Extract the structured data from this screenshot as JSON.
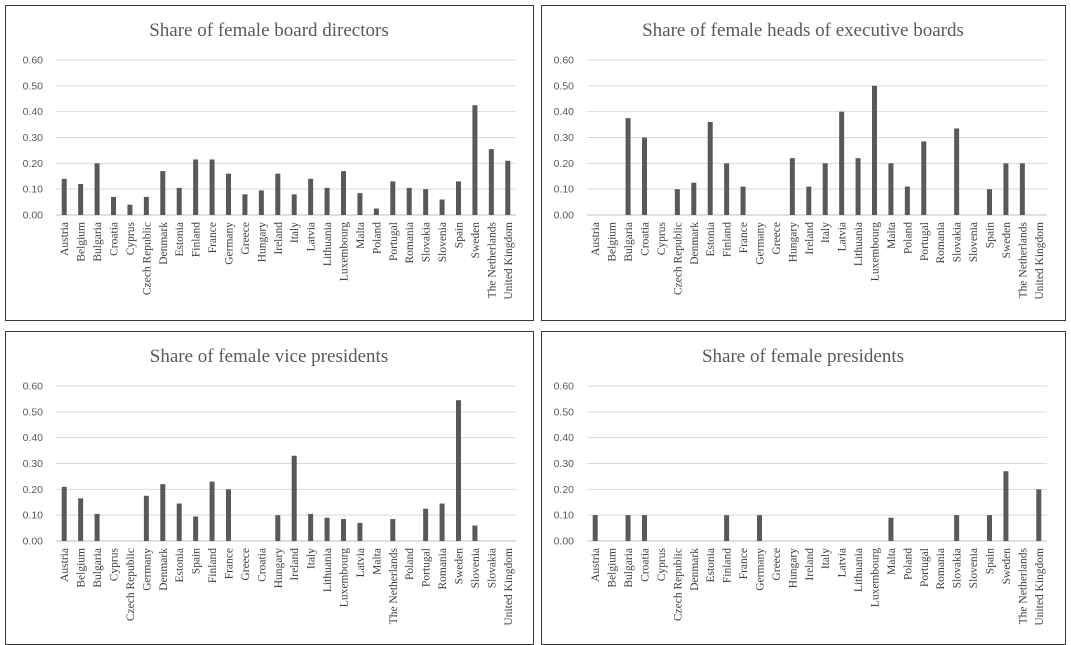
{
  "chart_data": [
    {
      "type": "bar",
      "title": "Share of female board directors",
      "ylim": [
        0,
        0.6
      ],
      "yticks": [
        "0.00",
        "0.10",
        "0.20",
        "0.30",
        "0.40",
        "0.50",
        "0.60"
      ],
      "grid": true,
      "categories": [
        "Austria",
        "Belgium",
        "Bulgaria",
        "Croatia",
        "Cyprus",
        "Czech Republic",
        "Denmark",
        "Estonia",
        "Finland",
        "France",
        "Germany",
        "Greece",
        "Hungary",
        "Ireland",
        "Italy",
        "Latvia",
        "Lithuania",
        "Luxembourg",
        "Malta",
        "Poland",
        "Portugal",
        "Romania",
        "Slovakia",
        "Slovenia",
        "Spain",
        "Sweden",
        "The Netherlands",
        "United Kingdom"
      ],
      "values": [
        0.14,
        0.12,
        0.2,
        0.07,
        0.04,
        0.07,
        0.17,
        0.105,
        0.215,
        0.215,
        0.16,
        0.08,
        0.095,
        0.16,
        0.08,
        0.14,
        0.105,
        0.17,
        0.085,
        0.025,
        0.13,
        0.105,
        0.1,
        0.06,
        0.13,
        0.425,
        0.255,
        0.21
      ],
      "bar_color": "#595959"
    },
    {
      "type": "bar",
      "title": "Share of female heads of executive boards",
      "ylim": [
        0,
        0.6
      ],
      "yticks": [
        "0.00",
        "0.10",
        "0.20",
        "0.30",
        "0.40",
        "0.50",
        "0.60"
      ],
      "grid": true,
      "categories": [
        "Austria",
        "Belgium",
        "Bulgaria",
        "Croatia",
        "Cyprus",
        "Czech Republic",
        "Denmark",
        "Estonia",
        "Finland",
        "France",
        "Germany",
        "Greece",
        "Hungary",
        "Ireland",
        "Italy",
        "Latvia",
        "Lithuania",
        "Luxembourg",
        "Malta",
        "Poland",
        "Portugal",
        "Romania",
        "Slovakia",
        "Slovenia",
        "Spain",
        "Sweden",
        "The Netherlands",
        "United Kingdom"
      ],
      "values": [
        0,
        0,
        0.375,
        0.3,
        0,
        0.1,
        0.125,
        0.36,
        0.2,
        0.11,
        0,
        0,
        0.22,
        0.11,
        0.2,
        0.4,
        0.22,
        0.5,
        0.2,
        0.11,
        0.285,
        0,
        0.335,
        0,
        0.1,
        0.2,
        0.2,
        0
      ],
      "bar_color": "#595959"
    },
    {
      "type": "bar",
      "title": "Share of female vice presidents",
      "ylim": [
        0,
        0.6
      ],
      "yticks": [
        "0.00",
        "0.10",
        "0.20",
        "0.30",
        "0.40",
        "0.50",
        "0.60"
      ],
      "grid": true,
      "categories": [
        "Austria",
        "Belgium",
        "Bulgaria",
        "Cyprus",
        "Czech Republic",
        "Germany",
        "Denmark",
        "Estonia",
        "Spain",
        "Finland",
        "France",
        "Greece",
        "Croatia",
        "Hungary",
        "Ireland",
        "Italy",
        "Lithuania",
        "Luxembourg",
        "Latvia",
        "Malta",
        "The Netherlands",
        "Poland",
        "Portugal",
        "Romania",
        "Sweden",
        "Slovenia",
        "Slovakia",
        "United Kingdom"
      ],
      "values": [
        0.21,
        0.165,
        0.105,
        0,
        0,
        0.175,
        0.22,
        0.145,
        0.095,
        0.23,
        0.2,
        0,
        0,
        0.1,
        0.33,
        0.105,
        0.09,
        0.085,
        0.07,
        0,
        0.085,
        0,
        0.125,
        0.145,
        0.545,
        0.06,
        0,
        0
      ],
      "bar_color": "#595959"
    },
    {
      "type": "bar",
      "title": "Share of female presidents",
      "ylim": [
        0,
        0.6
      ],
      "yticks": [
        "0.00",
        "0.10",
        "0.20",
        "0.30",
        "0.40",
        "0.50",
        "0.60"
      ],
      "grid": true,
      "categories": [
        "Austria",
        "Belgium",
        "Bulgaria",
        "Croatia",
        "Cyprus",
        "Czech Republic",
        "Denmark",
        "Estonia",
        "Finland",
        "France",
        "Germany",
        "Greece",
        "Hungary",
        "Ireland",
        "Italy",
        "Latvia",
        "Lithuania",
        "Luxembourg",
        "Malta",
        "Poland",
        "Portugal",
        "Romania",
        "Slovakia",
        "Slovenia",
        "Spain",
        "Sweden",
        "The Netherlands",
        "United Kingdom"
      ],
      "values": [
        0.1,
        0,
        0.1,
        0.1,
        0,
        0,
        0,
        0,
        0.1,
        0,
        0.1,
        0,
        0,
        0,
        0,
        0,
        0,
        0,
        0.09,
        0,
        0,
        0,
        0.1,
        0,
        0.1,
        0.27,
        0,
        0.2
      ],
      "bar_color": "#595959"
    }
  ]
}
